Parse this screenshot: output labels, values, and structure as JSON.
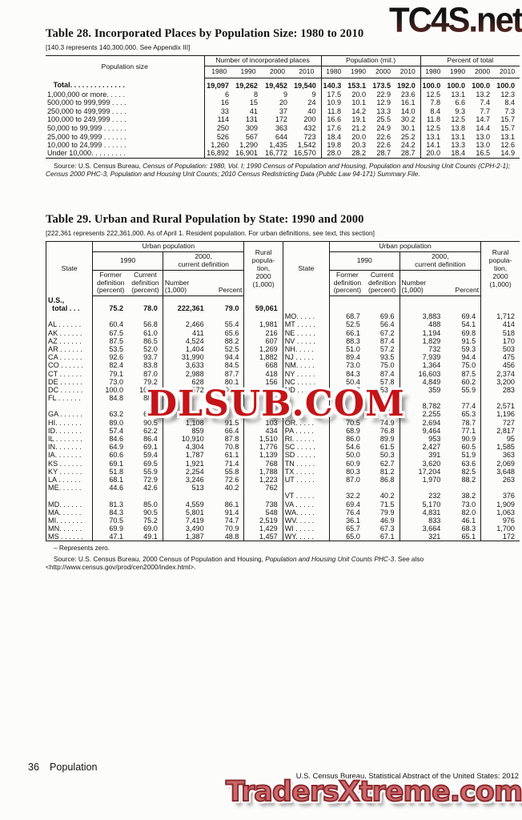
{
  "watermarks": {
    "tc4s": "TC4S.net",
    "dlsub": "DLSUB.COM",
    "traders": "TradersXtreme.com"
  },
  "footer": {
    "page_number": "36",
    "section": "Population",
    "credit": "U.S. Census Bureau, Statistical Abstract of the United States: 2012"
  },
  "table28": {
    "title": "Table 28. Incorporated Places by Population Size: 1980 to 2010",
    "note": "[140.3 represents 140,300,000. See Appendix III]",
    "headers": {
      "popsize": "Population size",
      "places": "Number of incorporated places",
      "population": "Population (mil.)",
      "percent": "Percent of total"
    },
    "years": [
      "1980",
      "1990",
      "2000",
      "2010"
    ],
    "source_pre": "Source: U.S. Census Bureau, ",
    "source_italic": "Census of Population: 1980, Vol. I; 1990 Census of Population and Housing, Population and Housing Unit Counts (CPH-2-1); Census 2000 PHC-3, Population and Housing Unit Counts; 2010 Census Redistricting Data (Public Law 94-171) Summary File.",
    "rows": [
      {
        "lbl": "   Total. . . . . . . . . . . . . .",
        "b": 1,
        "n80": "19,097",
        "n90": "19,262",
        "n00": "19,452",
        "n10": "19,540",
        "p80": "140.3",
        "p90": "153.1",
        "p00": "173.5",
        "p10": "192.0",
        "t80": "100.0",
        "t90": "100.0",
        "t00": "100.0",
        "t10": "100.0"
      },
      {
        "lbl": "1,000,000 or more. . . . .",
        "n80": "6",
        "n90": "8",
        "n00": "9",
        "n10": "9",
        "p80": "17.5",
        "p90": "20.0",
        "p00": "22.9",
        "p10": "23.6",
        "t80": "12.5",
        "t90": "13.1",
        "t00": "13.2",
        "t10": "12.3"
      },
      {
        "lbl": "500,000 to 999,999 . . . .",
        "n80": "16",
        "n90": "15",
        "n00": "20",
        "n10": "24",
        "p80": "10.9",
        "p90": "10.1",
        "p00": "12.9",
        "p10": "16.1",
        "t80": "7.8",
        "t90": "6.6",
        "t00": "7.4",
        "t10": "8.4"
      },
      {
        "lbl": "250,000 to 499,999 . . . .",
        "n80": "33",
        "n90": "41",
        "n00": "37",
        "n10": "40",
        "p80": "11.8",
        "p90": "14.2",
        "p00": "13.3",
        "p10": "14.0",
        "t80": "8.4",
        "t90": "9.3",
        "t00": "7.7",
        "t10": "7.3"
      },
      {
        "lbl": "100,000 to 249,999 . . . .",
        "n80": "114",
        "n90": "131",
        "n00": "172",
        "n10": "200",
        "p80": "16.6",
        "p90": "19.1",
        "p00": "25.5",
        "p10": "30.2",
        "t80": "11.8",
        "t90": "12.5",
        "t00": "14.7",
        "t10": "15.7"
      },
      {
        "lbl": "50,000 to 99,999 . . . . . .",
        "n80": "250",
        "n90": "309",
        "n00": "363",
        "n10": "432",
        "p80": "17.6",
        "p90": "21.2",
        "p00": "24.9",
        "p10": "30.1",
        "t80": "12.5",
        "t90": "13.8",
        "t00": "14.4",
        "t10": "15.7"
      },
      {
        "lbl": "25,000 to 49,999 . . . . . .",
        "n80": "526",
        "n90": "567",
        "n00": "644",
        "n10": "723",
        "p80": "18.4",
        "p90": "20.0",
        "p00": "22.6",
        "p10": "25.2",
        "t80": "13.1",
        "t90": "13.1",
        "t00": "13.0",
        "t10": "13.1"
      },
      {
        "lbl": "10,000 to 24,999 . . . . . .",
        "n80": "1,260",
        "n90": "1,290",
        "n00": "1,435",
        "n10": "1,542",
        "p80": "19.8",
        "p90": "20.3",
        "p00": "22.6",
        "p10": "24.2",
        "t80": "14.1",
        "t90": "13.3",
        "t00": "13.0",
        "t10": "12.6"
      },
      {
        "lbl": "Under 10,000. . . . . . . . .",
        "n80": "16,892",
        "n90": "16,901",
        "n00": "16,772",
        "n10": "16,570",
        "p80": "28.0",
        "p90": "28.2",
        "p00": "28.7",
        "p10": "28.7",
        "t80": "20.0",
        "t90": "18.4",
        "t00": "16.5",
        "t10": "14.9"
      }
    ]
  },
  "table29": {
    "title": "Table 29. Urban and Rural Population by State: 1990 and 2000",
    "note": "[222,361 represents 222,361,000. As of April 1. Resident population. For urban definitions, see text, this section]",
    "headers": {
      "state": "State",
      "urban": "Urban population",
      "y1990": "1990",
      "y2000": "2000,\ncurrent definition",
      "former": "Former\ndefinition\n(percent)",
      "current": "Current\ndefinition\n(percent)",
      "number": "Number\n(1,000)",
      "percent": "Percent",
      "rural": "Rural\npopula-\ntion,\n2000\n(1,000)"
    },
    "zero_note": "– Represents zero.",
    "source_pre": "Source: U.S. Census Bureau, 2000 Census of Population and Housing, ",
    "source_italic": "Population and Housing Unit Counts PHC-3",
    "source_post": ". See also <http://www.census.gov/prod/cen2000/index.html>.",
    "rows": [
      {
        "s1": "U.S.,",
        "b": 1,
        "f1": "",
        "c1": "",
        "n1": "",
        "p1": "",
        "r1": "",
        "s2": "",
        "f2": "",
        "c2": "",
        "n2": "",
        "p2": "",
        "r2": ""
      },
      {
        "s1": "  total . . .",
        "b": 1,
        "f1": "75.2",
        "c1": "78.0",
        "n1": "222,361",
        "p1": "79.0",
        "r1": "59,061",
        "s2": "",
        "f2": "",
        "c2": "",
        "n2": "",
        "p2": "",
        "r2": ""
      },
      {
        "s1": "",
        "f1": "",
        "c1": "",
        "n1": "",
        "p1": "",
        "r1": "",
        "s2": "MO. . . . .",
        "f2": "68.7",
        "c2": "69.6",
        "n2": "3,883",
        "p2": "69.4",
        "r2": "1,712"
      },
      {
        "s1": "AL . . . . . .",
        "f1": "60.4",
        "c1": "56.8",
        "n1": "2,466",
        "p1": "55.4",
        "r1": "1,981",
        "s2": "MT . . . . .",
        "f2": "52.5",
        "c2": "56.4",
        "n2": "488",
        "p2": "54.1",
        "r2": "414"
      },
      {
        "s1": "AK . . . . . .",
        "f1": "67.5",
        "c1": "61.0",
        "n1": "411",
        "p1": "65.6",
        "r1": "216",
        "s2": "NE . . . . .",
        "f2": "66.1",
        "c2": "67.2",
        "n2": "1,194",
        "p2": "69.8",
        "r2": "518"
      },
      {
        "s1": "AZ . . . . . .",
        "f1": "87.5",
        "c1": "86.5",
        "n1": "4,524",
        "p1": "88.2",
        "r1": "607",
        "s2": "NV . . . . .",
        "f2": "88.3",
        "c2": "87.4",
        "n2": "1,829",
        "p2": "91.5",
        "r2": "170"
      },
      {
        "s1": "AR . . . . . .",
        "f1": "53.5",
        "c1": "52.0",
        "n1": "1,404",
        "p1": "52.5",
        "r1": "1,269",
        "s2": "NH. . . . .",
        "f2": "51.0",
        "c2": "57.2",
        "n2": "732",
        "p2": "59.3",
        "r2": "503"
      },
      {
        "s1": "CA . . . . . .",
        "f1": "92.6",
        "c1": "93.7",
        "n1": "31,990",
        "p1": "94.4",
        "r1": "1,882",
        "s2": "NJ . . . . .",
        "f2": "89.4",
        "c2": "93.5",
        "n2": "7,939",
        "p2": "94.4",
        "r2": "475"
      },
      {
        "s1": "CO . . . . . .",
        "f1": "82.4",
        "c1": "83.8",
        "n1": "3,633",
        "p1": "84.5",
        "r1": "668",
        "s2": "NM. . . . .",
        "f2": "73.0",
        "c2": "75.0",
        "n2": "1,364",
        "p2": "75.0",
        "r2": "456"
      },
      {
        "s1": "CT . . . . . .",
        "f1": "79.1",
        "c1": "87.0",
        "n1": "2,988",
        "p1": "87.7",
        "r1": "418",
        "s2": "NY . . . . .",
        "f2": "84.3",
        "c2": "87.4",
        "n2": "16,603",
        "p2": "87.5",
        "r2": "2,374"
      },
      {
        "s1": "DE . . . . . .",
        "f1": "73.0",
        "c1": "79.2",
        "n1": "628",
        "p1": "80.1",
        "r1": "156",
        "s2": "NC . . . . .",
        "f2": "50.4",
        "c2": "57.8",
        "n2": "4,849",
        "p2": "60.2",
        "r2": "3,200"
      },
      {
        "s1": "DC . . . . . .",
        "f1": "100.0",
        "c1": "100.0",
        "n1": "572",
        "p1": "100.0",
        "r1": "–",
        "s2": "ND . . . . .",
        "f2": "53.3",
        "c2": "53.4",
        "n2": "359",
        "p2": "55.9",
        "r2": "283"
      },
      {
        "s1": "FL . . . . . .",
        "f1": "84.8",
        "c1": "88.0",
        "n1": "",
        "p1": "",
        "r1": "",
        "s2": "",
        "f2": "",
        "c2": "",
        "n2": "",
        "p2": "",
        "r2": ""
      },
      {
        "s1": "",
        "f1": "",
        "c1": "",
        "n1": "",
        "p1": "",
        "r1": "",
        "s2": "",
        "f2": "",
        "c2": "",
        "n2": "8,782",
        "p2": "77.4",
        "r2": "2,571"
      },
      {
        "s1": "GA . . . . . .",
        "f1": "63.2",
        "c1": "68.7",
        "n1": "",
        "p1": "",
        "r1": "",
        "s2": "",
        "f2": "",
        "c2": "",
        "n2": "2,255",
        "p2": "65.3",
        "r2": "1,196"
      },
      {
        "s1": "HI. . . . . . .",
        "f1": "89.0",
        "c1": "90.5",
        "n1": "1,108",
        "p1": "91.5",
        "r1": "103",
        "s2": "OR. . . . .",
        "f2": "70.5",
        "c2": "74.9",
        "n2": "2,694",
        "p2": "78.7",
        "r2": "727"
      },
      {
        "s1": "ID. . . . . . .",
        "f1": "57.4",
        "c1": "62.2",
        "n1": "859",
        "p1": "66.4",
        "r1": "434",
        "s2": "PA . . . . .",
        "f2": "68.9",
        "c2": "76.8",
        "n2": "9,464",
        "p2": "77.1",
        "r2": "2,817"
      },
      {
        "s1": "IL . . . . . . .",
        "f1": "84.6",
        "c1": "86.4",
        "n1": "10,910",
        "p1": "87.8",
        "r1": "1,510",
        "s2": "RI. . . . . .",
        "f2": "86.0",
        "c2": "89.9",
        "n2": "953",
        "p2": "90.9",
        "r2": "95"
      },
      {
        "s1": "IN. . . . . . .",
        "f1": "64.9",
        "c1": "69.1",
        "n1": "4,304",
        "p1": "70.8",
        "r1": "1,776",
        "s2": "SC . . . . .",
        "f2": "54.6",
        "c2": "61.5",
        "n2": "2,427",
        "p2": "60.5",
        "r2": "1,585"
      },
      {
        "s1": "IA. . . . . . .",
        "f1": "60.6",
        "c1": "59.4",
        "n1": "1,787",
        "p1": "61.1",
        "r1": "1,139",
        "s2": "SD . . . . .",
        "f2": "50.0",
        "c2": "50.3",
        "n2": "391",
        "p2": "51.9",
        "r2": "363"
      },
      {
        "s1": "KS . . . . . .",
        "f1": "69.1",
        "c1": "69.5",
        "n1": "1,921",
        "p1": "71.4",
        "r1": "768",
        "s2": "TN . . . . .",
        "f2": "60.9",
        "c2": "62.7",
        "n2": "3,620",
        "p2": "63.6",
        "r2": "2,069"
      },
      {
        "s1": "KY . . . . . .",
        "f1": "51.8",
        "c1": "55.9",
        "n1": "2,254",
        "p1": "55.8",
        "r1": "1,788",
        "s2": "TX . . . . .",
        "f2": "80.3",
        "c2": "81.2",
        "n2": "17,204",
        "p2": "82.5",
        "r2": "3,648"
      },
      {
        "s1": "LA . . . . . .",
        "f1": "68.1",
        "c1": "72.9",
        "n1": "3,246",
        "p1": "72.6",
        "r1": "1,223",
        "s2": "UT . . . . .",
        "f2": "87.0",
        "c2": "86.8",
        "n2": "1,970",
        "p2": "88.2",
        "r2": "263"
      },
      {
        "s1": "ME. . . . . .",
        "f1": "44.6",
        "c1": "42.6",
        "n1": "513",
        "p1": "40.2",
        "r1": "762",
        "s2": "",
        "f2": "",
        "c2": "",
        "n2": "",
        "p2": "",
        "r2": ""
      },
      {
        "s1": "",
        "f1": "",
        "c1": "",
        "n1": "",
        "p1": "",
        "r1": "",
        "s2": "VT . . . . .",
        "f2": "32.2",
        "c2": "40.2",
        "n2": "232",
        "p2": "38.2",
        "r2": "376"
      },
      {
        "s1": "MD. . . . . .",
        "f1": "81.3",
        "c1": "85.0",
        "n1": "4,559",
        "p1": "86.1",
        "r1": "738",
        "s2": "VA . . . . .",
        "f2": "69.4",
        "c2": "71.5",
        "n2": "5,170",
        "p2": "73.0",
        "r2": "1,909"
      },
      {
        "s1": "MA. . . . . .",
        "f1": "84.3",
        "c1": "90.5",
        "n1": "5,801",
        "p1": "91.4",
        "r1": "548",
        "s2": "WA. . . . .",
        "f2": "76.4",
        "c2": "79.9",
        "n2": "4,831",
        "p2": "82.0",
        "r2": "1,063"
      },
      {
        "s1": "MI. . . . . . .",
        "f1": "70.5",
        "c1": "75.2",
        "n1": "7,419",
        "p1": "74.7",
        "r1": "2,519",
        "s2": "WV. . . . .",
        "f2": "36.1",
        "c2": "46.9",
        "n2": "833",
        "p2": "46.1",
        "r2": "976"
      },
      {
        "s1": "MN. . . . . .",
        "f1": "69.9",
        "c1": "69.0",
        "n1": "3,490",
        "p1": "70.9",
        "r1": "1,429",
        "s2": "WI . . . . .",
        "f2": "65.7",
        "c2": "67.3",
        "n2": "3,664",
        "p2": "68.3",
        "r2": "1,700"
      },
      {
        "s1": "MS . . . . . .",
        "f1": "47.1",
        "c1": "49.1",
        "n1": "1,387",
        "p1": "48.8",
        "r1": "1,457",
        "s2": "WY. . . . .",
        "f2": "65.0",
        "c2": "67.1",
        "n2": "321",
        "p2": "65.1",
        "r2": "172"
      }
    ]
  }
}
